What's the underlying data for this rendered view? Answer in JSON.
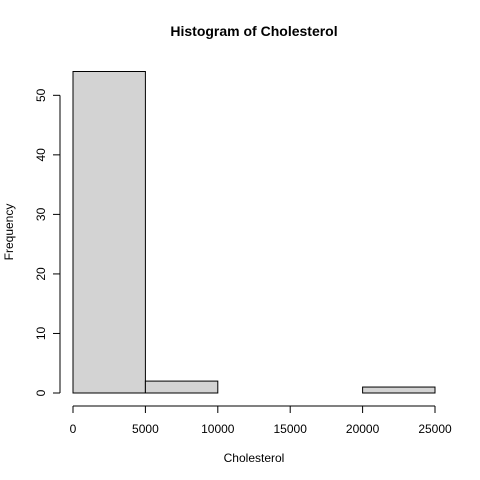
{
  "chart_data": {
    "type": "bar",
    "title": "Histogram of Cholesterol",
    "xlabel": "Cholesterol",
    "ylabel": "Frequency",
    "bins": [
      {
        "start": 0,
        "end": 5000,
        "count": 54
      },
      {
        "start": 5000,
        "end": 10000,
        "count": 2
      },
      {
        "start": 10000,
        "end": 15000,
        "count": 0
      },
      {
        "start": 15000,
        "end": 20000,
        "count": 0
      },
      {
        "start": 20000,
        "end": 25000,
        "count": 1
      }
    ],
    "xlim": [
      0,
      25000
    ],
    "ylim": [
      0,
      54
    ],
    "xticks": [
      "0",
      "5000",
      "10000",
      "15000",
      "20000",
      "25000"
    ],
    "yticks": [
      "0",
      "10",
      "20",
      "30",
      "40",
      "50"
    ],
    "bar_color": "#d3d3d3",
    "grid": false,
    "legend": "none"
  }
}
